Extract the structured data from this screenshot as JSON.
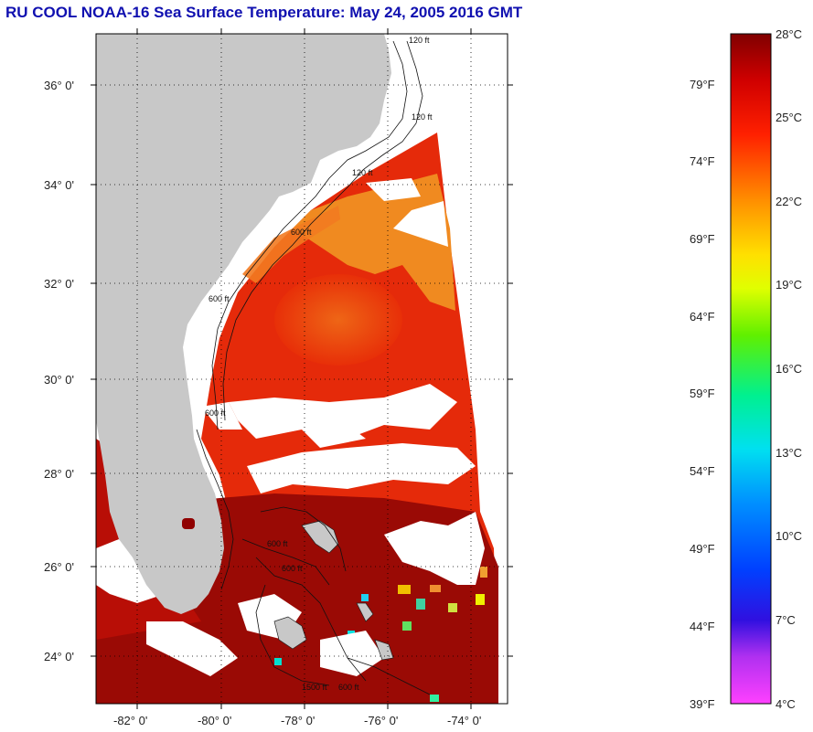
{
  "title": "RU COOL  NOAA-16  Sea Surface Temperature:  May 24, 2005 2016 GMT",
  "map": {
    "lon_ticks": [
      "-82° 0'",
      "-80° 0'",
      "-78° 0'",
      "-76° 0'",
      "-74° 0'"
    ],
    "lat_ticks": [
      "36° 0'",
      "34° 0'",
      "32° 0'",
      "30° 0'",
      "28° 0'",
      "26° 0'",
      "24° 0'"
    ],
    "contour_labels": [
      "120 ft",
      "120 ft",
      "120 ft",
      "600 ft",
      "600 ft",
      "600 ft",
      "600 ft",
      "600 ft",
      "1500 ft",
      "600 ft"
    ],
    "colors": {
      "land": "#c8c8c8",
      "cloud": "#ffffff",
      "sst_warm": "#8b0000",
      "sst_mid": "#e01000",
      "sst_cool": "#f07010",
      "sst_orange": "#f5a020"
    }
  },
  "colorbar": {
    "celsius_labels": [
      "28°C",
      "25°C",
      "22°C",
      "19°C",
      "16°C",
      "13°C",
      "10°C",
      "7°C",
      "4°C"
    ],
    "fahrenheit_labels": [
      "79°F",
      "74°F",
      "69°F",
      "64°F",
      "59°F",
      "54°F",
      "49°F",
      "44°F",
      "39°F"
    ],
    "range_celsius": [
      4,
      28
    ],
    "stops": [
      "#ff40ff",
      "#7030d0",
      "#0000f0",
      "#0090ff",
      "#00f0f0",
      "#00f080",
      "#80f000",
      "#ffff00",
      "#ffc000",
      "#ff8000",
      "#ff3000",
      "#e00000",
      "#900000"
    ]
  }
}
